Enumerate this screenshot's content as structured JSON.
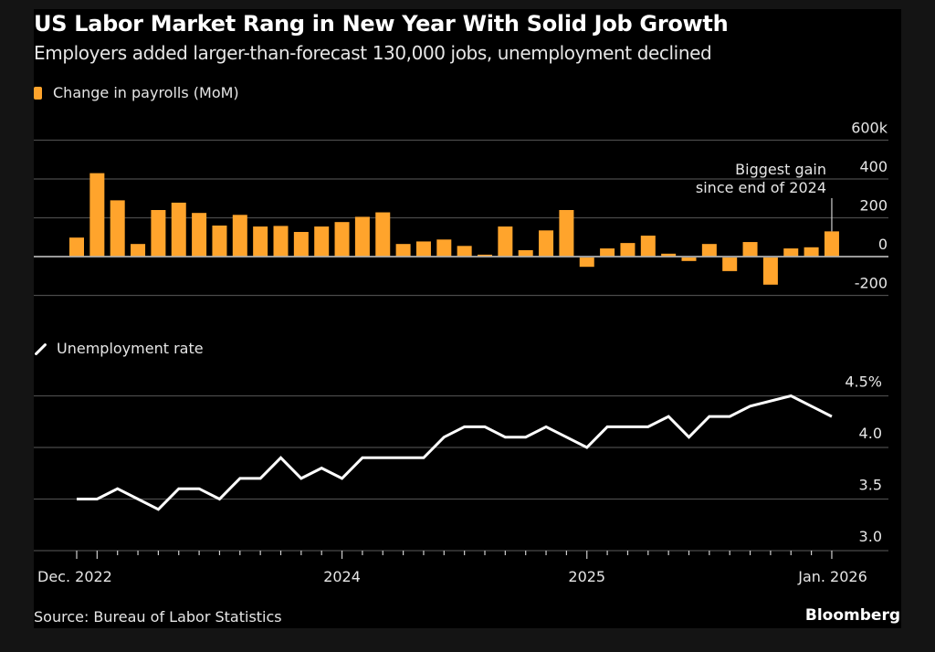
{
  "header": {
    "title": "US Labor Market Rang in New Year With Solid Job Growth",
    "subtitle": "Employers added larger-than-forecast 130,000 jobs, unemployment declined"
  },
  "footer": {
    "source": "Source: Bureau of Labor Statistics",
    "brand": "Bloomberg"
  },
  "colors": {
    "bar": "#ffa42c",
    "line": "#ffffff",
    "background": "#000000",
    "outer": "#141414",
    "grid": "#4a4a4a",
    "zero": "#b0b0b0"
  },
  "chart_data": [
    {
      "type": "bar",
      "title": "US Labor Market Rang in New Year With Solid Job Growth",
      "legend": "Change in payrolls (MoM)",
      "legend_position": "top-left",
      "ylabel": "",
      "ylim": [
        -200,
        600
      ],
      "yticks": [
        -200,
        0,
        200,
        400,
        600
      ],
      "ytick_labels": [
        "-200",
        "0",
        "200",
        "400",
        "600k"
      ],
      "grid": true,
      "x_start": "Dec. 2022",
      "x_end": "Jan. 2026",
      "months": [
        "2022-12",
        "2023-01",
        "2023-02",
        "2023-03",
        "2023-04",
        "2023-05",
        "2023-06",
        "2023-07",
        "2023-08",
        "2023-09",
        "2023-10",
        "2023-11",
        "2023-12",
        "2024-01",
        "2024-02",
        "2024-03",
        "2024-04",
        "2024-05",
        "2024-06",
        "2024-07",
        "2024-08",
        "2024-09",
        "2024-10",
        "2024-11",
        "2024-12",
        "2025-01",
        "2025-02",
        "2025-03",
        "2025-04",
        "2025-05",
        "2025-06",
        "2025-07",
        "2025-08",
        "2025-09",
        "2025-10",
        "2025-11",
        "2025-12",
        "2026-01"
      ],
      "values": [
        98,
        430,
        290,
        65,
        240,
        278,
        225,
        160,
        215,
        155,
        158,
        127,
        155,
        178,
        205,
        228,
        65,
        78,
        88,
        55,
        10,
        155,
        33,
        135,
        240,
        -48,
        42,
        70,
        108,
        15,
        -18,
        65,
        -70,
        75,
        -140,
        42,
        48,
        130
      ],
      "annotation": {
        "line1": "Biggest gain",
        "line2": "since end of 2024",
        "target_month": "2026-01"
      }
    },
    {
      "type": "line",
      "legend": "Unemployment rate",
      "legend_position": "middle-left",
      "ylabel": "",
      "ylim": [
        3.0,
        4.5
      ],
      "yticks": [
        3.0,
        3.5,
        4.0,
        4.5
      ],
      "ytick_labels": [
        "3.0",
        "3.5",
        "4.0",
        "4.5%"
      ],
      "grid": true,
      "months": [
        "2022-12",
        "2023-01",
        "2023-02",
        "2023-03",
        "2023-04",
        "2023-05",
        "2023-06",
        "2023-07",
        "2023-08",
        "2023-09",
        "2023-10",
        "2023-11",
        "2023-12",
        "2024-01",
        "2024-02",
        "2024-03",
        "2024-04",
        "2024-05",
        "2024-06",
        "2024-07",
        "2024-08",
        "2024-09",
        "2024-10",
        "2024-11",
        "2024-12",
        "2025-01",
        "2025-02",
        "2025-03",
        "2025-04",
        "2025-05",
        "2025-06",
        "2025-07",
        "2025-08",
        "2025-09",
        "2025-10",
        "2025-11",
        "2025-12",
        "2026-01"
      ],
      "values": [
        3.5,
        3.5,
        3.6,
        3.5,
        3.4,
        3.6,
        3.6,
        3.5,
        3.7,
        3.7,
        3.9,
        3.7,
        3.8,
        3.7,
        3.9,
        3.9,
        3.9,
        3.9,
        4.1,
        4.2,
        4.2,
        4.1,
        4.1,
        4.2,
        4.1,
        4.0,
        4.2,
        4.2,
        4.2,
        4.3,
        4.1,
        4.3,
        4.3,
        4.4,
        null,
        4.5,
        4.4,
        4.3
      ]
    }
  ],
  "xaxis": {
    "labels": [
      {
        "month": "2022-12",
        "text": "Dec. 2022",
        "anchor": "start"
      },
      {
        "month": "2024-01",
        "text": "2024",
        "anchor": "middle"
      },
      {
        "month": "2025-01",
        "text": "2025",
        "anchor": "middle"
      },
      {
        "month": "2026-01",
        "text": "Jan. 2026",
        "anchor": "middle"
      }
    ]
  }
}
